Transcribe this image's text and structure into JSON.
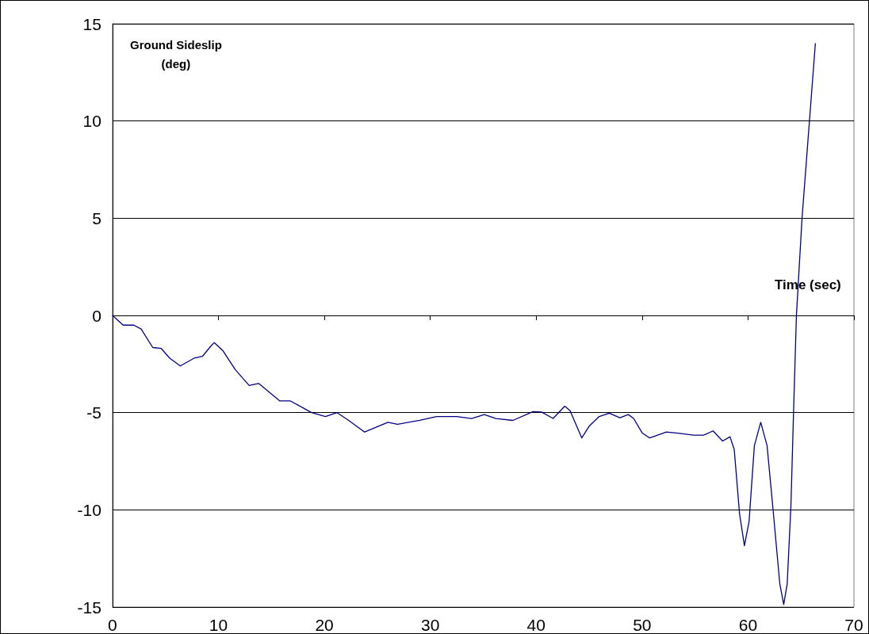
{
  "chart_data": {
    "type": "line",
    "xlabel": "Time (sec)",
    "ylabel": "Ground Sideslip\n(deg)",
    "xlim": [
      0,
      70
    ],
    "xticks": [
      0,
      10,
      20,
      30,
      40,
      50,
      60,
      70
    ],
    "ylim": [
      -15,
      15
    ],
    "yticks": [
      -15,
      -10,
      -5,
      0,
      5,
      10,
      15
    ],
    "grid": "y",
    "marker": "none",
    "line_style": "solid",
    "x": [
      0,
      1,
      2,
      2.7,
      3.8,
      4.6,
      5.4,
      6.4,
      7.7,
      8.5,
      9.25,
      9.6,
      10.4,
      11.6,
      12.9,
      13.8,
      15.8,
      16.8,
      18.8,
      20.1,
      21.2,
      22.3,
      23.8,
      26.0,
      26.9,
      29.0,
      30.6,
      32.5,
      33.9,
      35.1,
      36.2,
      37.8,
      39.7,
      40.5,
      41.6,
      42.7,
      43.2,
      44.3,
      45.0,
      45.95,
      46.9,
      47.9,
      48.7,
      49.2,
      50.0,
      50.7,
      52.3,
      53.4,
      54.9,
      55.8,
      56.7,
      57.6,
      58.3,
      58.7,
      59.2,
      59.66,
      60.1,
      60.6,
      61.2,
      61.8,
      62.4,
      63.0,
      63.37,
      63.7,
      64.05,
      64.3,
      64.57,
      65.1,
      65.8,
      66.36
    ],
    "series": [
      {
        "color": "#000080",
        "values": [
          0,
          -0.5,
          -0.5,
          -0.7,
          -1.65,
          -1.7,
          -2.2,
          -2.6,
          -2.2,
          -2.1,
          -1.6,
          -1.4,
          -1.8,
          -2.8,
          -3.6,
          -3.5,
          -4.4,
          -4.4,
          -5.0,
          -5.2,
          -5.0,
          -5.4,
          -6.0,
          -5.5,
          -5.6,
          -5.4,
          -5.2,
          -5.2,
          -5.3,
          -5.1,
          -5.3,
          -5.4,
          -4.95,
          -4.97,
          -5.3,
          -4.67,
          -4.9,
          -6.3,
          -5.7,
          -5.2,
          -5.03,
          -5.26,
          -5.1,
          -5.3,
          -6.04,
          -6.3,
          -6.0,
          -6.06,
          -6.16,
          -6.16,
          -5.94,
          -6.46,
          -6.24,
          -6.9,
          -10.2,
          -11.85,
          -10.6,
          -6.7,
          -5.5,
          -6.7,
          -10.2,
          -13.8,
          -14.86,
          -13.8,
          -9.8,
          -4.96,
          0,
          5,
          10,
          14
        ]
      }
    ]
  }
}
